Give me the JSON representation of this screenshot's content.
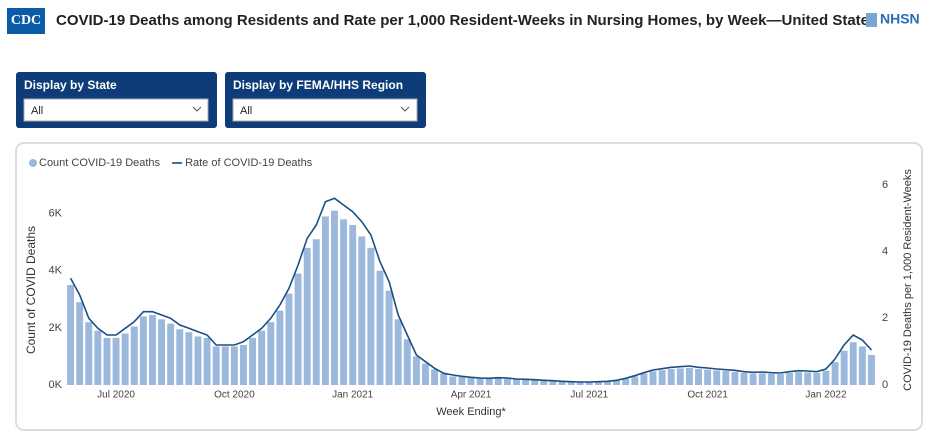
{
  "header": {
    "logo": "CDC",
    "title": "COVID-19 Deaths among Residents and Rate per 1,000 Resident-Weeks in Nursing Homes, by Week—United States",
    "brand": "NHSN"
  },
  "filters": [
    {
      "label": "Display by State",
      "value": "All"
    },
    {
      "label": "Display by FEMA/HHS Region",
      "value": "All"
    }
  ],
  "chart_data": {
    "type": "combo",
    "x_label": "Week Ending*",
    "y_label": "Count of COVID Deaths",
    "y2_label": "COVID-19 Deaths per 1,000 Resident-Weeks",
    "categories": [
      null,
      null,
      null,
      null,
      null,
      "Jul 2020",
      null,
      null,
      null,
      null,
      null,
      null,
      null,
      null,
      null,
      null,
      null,
      null,
      "Oct 2020",
      null,
      null,
      null,
      null,
      null,
      null,
      null,
      null,
      null,
      null,
      null,
      null,
      "Jan 2021",
      null,
      null,
      null,
      null,
      null,
      null,
      null,
      null,
      null,
      null,
      null,
      null,
      "Apr 2021",
      null,
      null,
      null,
      null,
      null,
      null,
      null,
      null,
      null,
      null,
      null,
      null,
      "Jul 2021",
      null,
      null,
      null,
      null,
      null,
      null,
      null,
      null,
      null,
      null,
      null,
      null,
      "Oct 2021",
      null,
      null,
      null,
      null,
      null,
      null,
      null,
      null,
      null,
      null,
      null,
      null,
      "Jan 2022",
      null,
      null,
      null,
      null,
      null
    ],
    "series": [
      {
        "name": "Count COVID-19 Deaths",
        "type": "bar",
        "color": "#9cb9dd",
        "values": [
          3500,
          2900,
          2200,
          1900,
          1650,
          1650,
          1800,
          2050,
          2400,
          2450,
          2300,
          2150,
          1950,
          1850,
          1700,
          1650,
          1350,
          1350,
          1350,
          1400,
          1650,
          1900,
          2200,
          2600,
          3200,
          3900,
          4800,
          5100,
          5900,
          6100,
          5800,
          5600,
          5200,
          4800,
          4000,
          3300,
          2300,
          1600,
          1000,
          750,
          550,
          400,
          300,
          280,
          250,
          230,
          220,
          240,
          230,
          200,
          190,
          170,
          150,
          140,
          120,
          110,
          100,
          100,
          110,
          120,
          150,
          220,
          300,
          400,
          480,
          520,
          560,
          580,
          600,
          560,
          540,
          510,
          490,
          460,
          420,
          400,
          410,
          390,
          380,
          420,
          450,
          440,
          420,
          500,
          800,
          1200,
          1500,
          1350,
          1050
        ]
      },
      {
        "name": "Rate of COVID-19 Deaths",
        "type": "line",
        "axis": "y2",
        "color": "#1b4f82",
        "values": [
          3.2,
          2.7,
          2.0,
          1.7,
          1.5,
          1.5,
          1.7,
          1.9,
          2.2,
          2.2,
          2.1,
          2.0,
          1.8,
          1.7,
          1.6,
          1.5,
          1.2,
          1.2,
          1.2,
          1.3,
          1.5,
          1.7,
          2.0,
          2.4,
          2.9,
          3.6,
          4.4,
          4.8,
          5.5,
          5.6,
          5.4,
          5.2,
          4.9,
          4.5,
          3.7,
          3.1,
          2.1,
          1.5,
          0.9,
          0.7,
          0.5,
          0.35,
          0.3,
          0.26,
          0.23,
          0.21,
          0.2,
          0.22,
          0.21,
          0.18,
          0.17,
          0.16,
          0.14,
          0.13,
          0.11,
          0.1,
          0.09,
          0.09,
          0.1,
          0.11,
          0.14,
          0.2,
          0.28,
          0.37,
          0.45,
          0.49,
          0.53,
          0.55,
          0.57,
          0.53,
          0.51,
          0.48,
          0.46,
          0.44,
          0.4,
          0.38,
          0.39,
          0.37,
          0.36,
          0.4,
          0.43,
          0.42,
          0.4,
          0.48,
          0.78,
          1.2,
          1.5,
          1.35,
          1.05
        ]
      }
    ],
    "ylim": [
      0,
      7000
    ],
    "yticks": [
      {
        "value": 0,
        "label": "0K"
      },
      {
        "value": 2000,
        "label": "2K"
      },
      {
        "value": 4000,
        "label": "4K"
      },
      {
        "value": 6000,
        "label": "6K"
      }
    ],
    "y2lim": [
      0,
      6
    ],
    "y2ticks": [
      0,
      2,
      4,
      6
    ],
    "legend": "top-left"
  }
}
